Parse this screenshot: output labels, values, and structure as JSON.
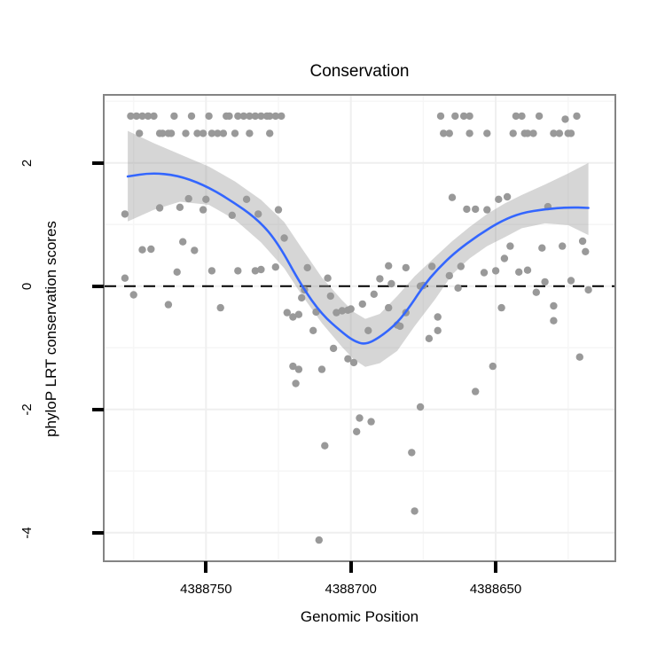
{
  "title": "Conservation",
  "colors": {
    "point": "#999999",
    "smooth_line": "#3366FF",
    "ribbon": "#999999",
    "zero_line": "#000000",
    "grid_major": "#efefef",
    "grid_minor": "#f6f6f6",
    "panel_border": "#848484",
    "tick": "#000000"
  },
  "chart_data": {
    "type": "scatter",
    "title": "Conservation",
    "xlabel": "Genomic Position",
    "ylabel": "phyloP LRT conservation scores",
    "x_axis_reversed": true,
    "x_domain": [
      4388785,
      4388609
    ],
    "y_domain": [
      -4.45,
      3.09
    ],
    "x_ticks": [
      4388750,
      4388700,
      4388650
    ],
    "x_minor_ticks": [
      4388775,
      4388725,
      4388675,
      4388625
    ],
    "y_ticks": [
      2,
      0,
      -2,
      -4
    ],
    "y_minor_ticks": [
      3,
      1,
      -1,
      -3
    ],
    "zero_line": {
      "y": 0,
      "style": "dashed"
    },
    "legend": "none",
    "grid": true,
    "points": [
      [
        4388776,
        2.76
      ],
      [
        4388774,
        2.76
      ],
      [
        4388772,
        2.76
      ],
      [
        4388770,
        2.76
      ],
      [
        4388768,
        2.76
      ],
      [
        4388761,
        2.76
      ],
      [
        4388755,
        2.76
      ],
      [
        4388749,
        2.76
      ],
      [
        4388743,
        2.76
      ],
      [
        4388742,
        2.76
      ],
      [
        4388739,
        2.76
      ],
      [
        4388737,
        2.76
      ],
      [
        4388735,
        2.76
      ],
      [
        4388733,
        2.76
      ],
      [
        4388731,
        2.76
      ],
      [
        4388729,
        2.76
      ],
      [
        4388728,
        2.76
      ],
      [
        4388726,
        2.76
      ],
      [
        4388724,
        2.76
      ],
      [
        4388669,
        2.76
      ],
      [
        4388664,
        2.76
      ],
      [
        4388661,
        2.76
      ],
      [
        4388659,
        2.76
      ],
      [
        4388643,
        2.76
      ],
      [
        4388641,
        2.76
      ],
      [
        4388635,
        2.76
      ],
      [
        4388622,
        2.76
      ],
      [
        4388626,
        2.71
      ],
      [
        4388773,
        2.48
      ],
      [
        4388766,
        2.48
      ],
      [
        4388765,
        2.48
      ],
      [
        4388763,
        2.48
      ],
      [
        4388762,
        2.48
      ],
      [
        4388757,
        2.48
      ],
      [
        4388753,
        2.48
      ],
      [
        4388751,
        2.48
      ],
      [
        4388748,
        2.48
      ],
      [
        4388746,
        2.48
      ],
      [
        4388744,
        2.48
      ],
      [
        4388740,
        2.48
      ],
      [
        4388735,
        2.48
      ],
      [
        4388728,
        2.48
      ],
      [
        4388668,
        2.48
      ],
      [
        4388666,
        2.48
      ],
      [
        4388659,
        2.48
      ],
      [
        4388653,
        2.48
      ],
      [
        4388644,
        2.48
      ],
      [
        4388640,
        2.48
      ],
      [
        4388639,
        2.48
      ],
      [
        4388637,
        2.48
      ],
      [
        4388630,
        2.48
      ],
      [
        4388628,
        2.48
      ],
      [
        4388625,
        2.48
      ],
      [
        4388624,
        2.48
      ],
      [
        4388778,
        1.17
      ],
      [
        4388766,
        1.27
      ],
      [
        4388759,
        1.28
      ],
      [
        4388756,
        1.42
      ],
      [
        4388751,
        1.24
      ],
      [
        4388750,
        1.41
      ],
      [
        4388741,
        1.15
      ],
      [
        4388736,
        1.41
      ],
      [
        4388732,
        1.17
      ],
      [
        4388725,
        1.24
      ],
      [
        4388665,
        1.44
      ],
      [
        4388660,
        1.25
      ],
      [
        4388657,
        1.25
      ],
      [
        4388653,
        1.24
      ],
      [
        4388649,
        1.41
      ],
      [
        4388646,
        1.45
      ],
      [
        4388632,
        1.29
      ],
      [
        4388772,
        0.59
      ],
      [
        4388769,
        0.6
      ],
      [
        4388758,
        0.72
      ],
      [
        4388754,
        0.58
      ],
      [
        4388723,
        0.78
      ],
      [
        4388645,
        0.65
      ],
      [
        4388634,
        0.62
      ],
      [
        4388627,
        0.65
      ],
      [
        4388620,
        0.73
      ],
      [
        4388619,
        0.56
      ],
      [
        4388778,
        0.13
      ],
      [
        4388775,
        -0.14
      ],
      [
        4388763,
        -0.3
      ],
      [
        4388760,
        0.23
      ],
      [
        4388748,
        0.25
      ],
      [
        4388745,
        -0.35
      ],
      [
        4388739,
        0.25
      ],
      [
        4388733,
        0.25
      ],
      [
        4388731,
        0.27
      ],
      [
        4388726,
        0.31
      ],
      [
        4388722,
        -0.43
      ],
      [
        4388720,
        -0.5
      ],
      [
        4388718,
        -0.46
      ],
      [
        4388717,
        -0.19
      ],
      [
        4388716,
        -0.06
      ],
      [
        4388715,
        0.3
      ],
      [
        4388713,
        -0.72
      ],
      [
        4388712,
        -0.42
      ],
      [
        4388708,
        0.13
      ],
      [
        4388707,
        -0.16
      ],
      [
        4388720,
        -1.3
      ],
      [
        4388718,
        -1.35
      ],
      [
        4388710,
        -1.35
      ],
      [
        4388719,
        -1.58
      ],
      [
        4388705,
        -0.43
      ],
      [
        4388703,
        -0.4
      ],
      [
        4388701,
        -0.39
      ],
      [
        4388700,
        -0.37
      ],
      [
        4388696,
        -0.29
      ],
      [
        4388692,
        -0.13
      ],
      [
        4388694,
        -0.72
      ],
      [
        4388706,
        -1.01
      ],
      [
        4388701,
        -1.18
      ],
      [
        4388699,
        -1.24
      ],
      [
        4388687,
        -0.35
      ],
      [
        4388684,
        -0.63
      ],
      [
        4388683,
        -0.65
      ],
      [
        4388681,
        -0.43
      ],
      [
        4388676,
        0.0
      ],
      [
        4388675,
        0.01
      ],
      [
        4388673,
        -0.85
      ],
      [
        4388670,
        -0.5
      ],
      [
        4388670,
        -0.72
      ],
      [
        4388697,
        -2.14
      ],
      [
        4388693,
        -2.2
      ],
      [
        4388698,
        -2.36
      ],
      [
        4388709,
        -2.59
      ],
      [
        4388711,
        -4.12
      ],
      [
        4388679,
        -2.7
      ],
      [
        4388678,
        -3.65
      ],
      [
        4388676,
        -1.96
      ],
      [
        4388657,
        -1.71
      ],
      [
        4388651,
        -1.3
      ],
      [
        4388621,
        -1.15
      ],
      [
        4388690,
        0.12
      ],
      [
        4388686,
        0.04
      ],
      [
        4388687,
        0.33
      ],
      [
        4388681,
        0.3
      ],
      [
        4388672,
        0.32
      ],
      [
        4388666,
        0.17
      ],
      [
        4388662,
        0.32
      ],
      [
        4388663,
        -0.03
      ],
      [
        4388654,
        0.22
      ],
      [
        4388650,
        0.25
      ],
      [
        4388648,
        -0.35
      ],
      [
        4388647,
        0.45
      ],
      [
        4388642,
        0.23
      ],
      [
        4388639,
        0.26
      ],
      [
        4388636,
        -0.1
      ],
      [
        4388633,
        0.07
      ],
      [
        4388630,
        -0.32
      ],
      [
        4388630,
        -0.56
      ],
      [
        4388624,
        0.09
      ],
      [
        4388618,
        -0.06
      ]
    ],
    "smooth_line": {
      "points": [
        [
          4388777,
          1.78
        ],
        [
          4388769,
          1.84
        ],
        [
          4388760,
          1.8
        ],
        [
          4388751,
          1.65
        ],
        [
          4388742,
          1.41
        ],
        [
          4388732,
          1.08
        ],
        [
          4388725,
          0.69
        ],
        [
          4388717,
          0.0
        ],
        [
          4388710,
          -0.46
        ],
        [
          4388703,
          -0.75
        ],
        [
          4388699,
          -0.89
        ],
        [
          4388695,
          -0.95
        ],
        [
          4388690,
          -0.83
        ],
        [
          4388684,
          -0.6
        ],
        [
          4388679,
          -0.29
        ],
        [
          4388675,
          0.0
        ],
        [
          4388670,
          0.28
        ],
        [
          4388664,
          0.55
        ],
        [
          4388656,
          0.83
        ],
        [
          4388648,
          1.06
        ],
        [
          4388641,
          1.19
        ],
        [
          4388633,
          1.25
        ],
        [
          4388625,
          1.28
        ],
        [
          4388618,
          1.27
        ]
      ]
    },
    "confidence_ribbon": {
      "opacity": 0.4,
      "points": [
        [
          4388777,
          2.52,
          1.05
        ],
        [
          4388768,
          2.32,
          1.24
        ],
        [
          4388759,
          2.14,
          1.37
        ],
        [
          4388749,
          1.94,
          1.32
        ],
        [
          4388740,
          1.7,
          1.08
        ],
        [
          4388731,
          1.4,
          0.71
        ],
        [
          4388723,
          1.04,
          0.29
        ],
        [
          4388717,
          0.62,
          -0.14
        ],
        [
          4388710,
          0.14,
          -0.6
        ],
        [
          4388703,
          -0.23,
          -0.99
        ],
        [
          4388699,
          -0.42,
          -1.19
        ],
        [
          4388695,
          -0.53,
          -1.31
        ],
        [
          4388690,
          -0.45,
          -1.25
        ],
        [
          4388684,
          -0.16,
          -1.05
        ],
        [
          4388678,
          0.16,
          -0.65
        ],
        [
          4388671,
          0.47,
          -0.22
        ],
        [
          4388665,
          0.73,
          0.19
        ],
        [
          4388659,
          0.96,
          0.45
        ],
        [
          4388653,
          1.17,
          0.65
        ],
        [
          4388647,
          1.34,
          0.79
        ],
        [
          4388641,
          1.48,
          0.94
        ],
        [
          4388633,
          1.65,
          1.02
        ],
        [
          4388625,
          1.83,
          0.99
        ],
        [
          4388618,
          2.0,
          0.83
        ]
      ]
    }
  }
}
